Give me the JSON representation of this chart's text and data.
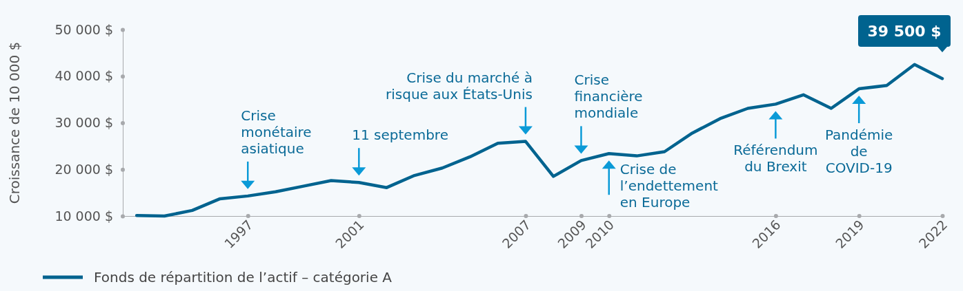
{
  "chart_data": {
    "type": "line",
    "ylabel": "Croissance de 10 000 $",
    "x": [
      1993,
      1994,
      1995,
      1996,
      1997,
      1998,
      1999,
      2000,
      2001,
      2002,
      2003,
      2004,
      2005,
      2006,
      2007,
      2008,
      2009,
      2010,
      2011,
      2012,
      2013,
      2014,
      2015,
      2016,
      2017,
      2018,
      2019,
      2020,
      2021,
      2022
    ],
    "series": [
      {
        "name": "Fonds de répartition de l’actif – catégorie A",
        "color": "#00638f",
        "values": [
          10100,
          10000,
          11200,
          13700,
          14300,
          15200,
          16400,
          17600,
          17200,
          16100,
          18700,
          20300,
          22700,
          25600,
          26000,
          18500,
          21900,
          23400,
          22900,
          23800,
          27800,
          30900,
          33100,
          34000,
          36000,
          33100,
          37300,
          38000,
          42500,
          39500
        ]
      }
    ],
    "xlim": [
      1992.5,
      2022
    ],
    "xticks": [
      1997,
      2001,
      2007,
      2009,
      2010,
      2016,
      2019,
      2022
    ],
    "ylim": [
      10000,
      50000
    ],
    "yticks": [
      {
        "value": 10000,
        "label": "10 000 $"
      },
      {
        "value": 20000,
        "label": "20 000 $"
      },
      {
        "value": 30000,
        "label": "30 000 $"
      },
      {
        "value": 40000,
        "label": "40 000 $"
      },
      {
        "value": 50000,
        "label": "50 000 $"
      }
    ],
    "annotations": [
      {
        "text": "Crise\nmonétaire\nasiatique",
        "x": 1997,
        "y": 14300
      },
      {
        "text": "11 septembre",
        "x": 2001,
        "y": 17200
      },
      {
        "text": "Crise du marché à\nrisque aux États-Unis",
        "x": 2007,
        "y": 26000
      },
      {
        "text": "Crise\nfinancière\nmondiale",
        "x": 2009,
        "y": 21900
      },
      {
        "text": "Crise de\nl’endettement\nen Europe",
        "x": 2010,
        "y": 23400
      },
      {
        "text": "Référendum\ndu Brexit",
        "x": 2016,
        "y": 34000
      },
      {
        "text": "Pandémie\nde\nCOVID-19",
        "x": 2019,
        "y": 37300
      },
      {
        "text": "39 500 $",
        "x": 2022,
        "y": 39500
      }
    ],
    "grid": false,
    "legend": "bottom",
    "marker": "none",
    "line_style": "solid"
  }
}
